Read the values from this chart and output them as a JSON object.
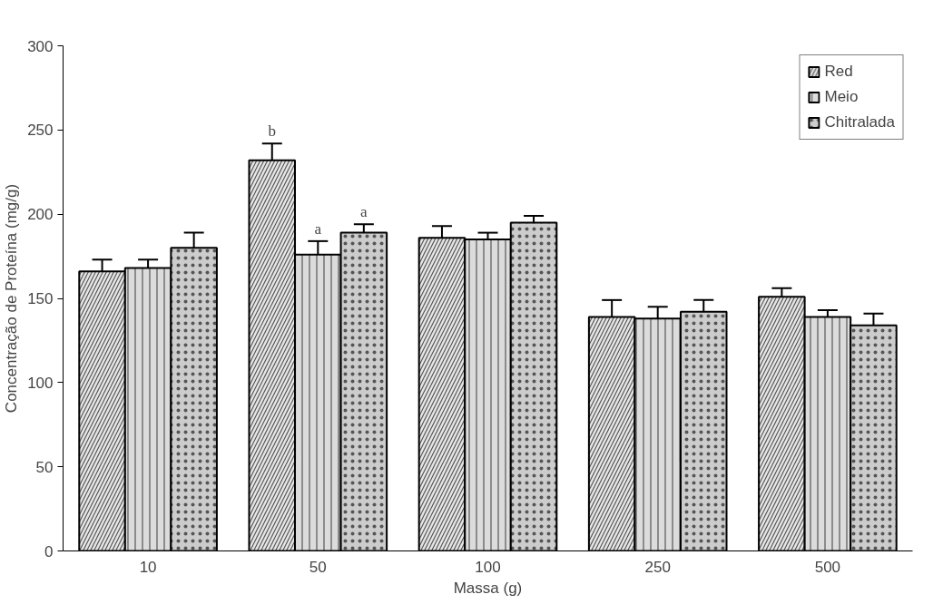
{
  "chart_data": {
    "type": "bar",
    "xlabel": "Massa (g)",
    "ylabel": "Concentração de Proteína (mg/g)",
    "categories": [
      "10",
      "50",
      "100",
      "250",
      "500"
    ],
    "series": [
      {
        "name": "Red",
        "color": "#e6e6e6",
        "values": [
          166,
          232,
          186,
          139,
          151
        ],
        "errors": [
          7,
          10,
          7,
          10,
          5
        ]
      },
      {
        "name": "Meio",
        "color": "#dcdcdc",
        "values": [
          168,
          176,
          185,
          138,
          139
        ],
        "errors": [
          5,
          8,
          4,
          7,
          4
        ]
      },
      {
        "name": "Chitralada",
        "color": "#cccccc",
        "values": [
          180,
          189,
          195,
          142,
          134
        ],
        "errors": [
          9,
          5,
          4,
          7,
          7
        ]
      }
    ],
    "ylim": [
      0,
      300
    ],
    "yticks": [
      0,
      50,
      100,
      150,
      200,
      250,
      300
    ],
    "grid": false,
    "legend": "top right",
    "annotations": [
      "b",
      "a",
      "a"
    ]
  }
}
